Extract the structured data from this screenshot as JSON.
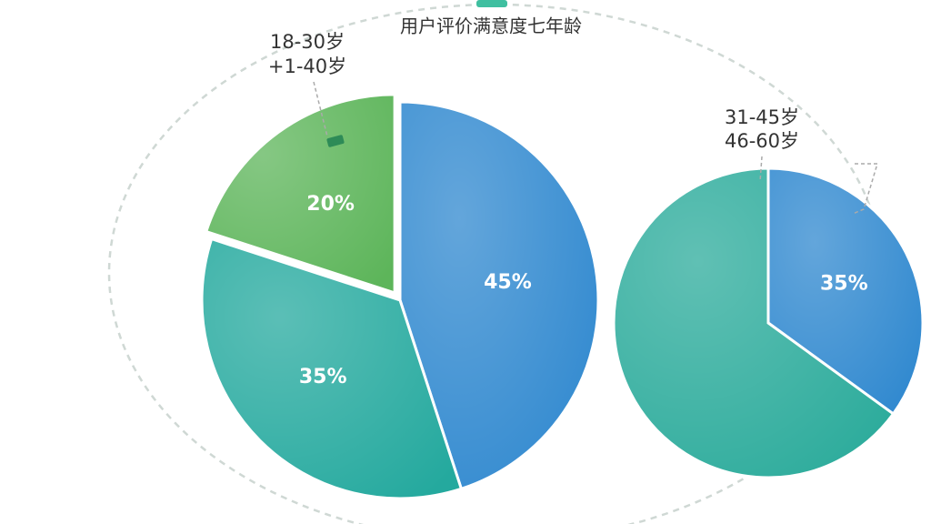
{
  "title": "用户评价满意度七年龄",
  "chart_data": [
    {
      "type": "pie",
      "annotations": [
        "18-30岁",
        "+1-40岁"
      ],
      "values": [
        45,
        35,
        20
      ],
      "value_labels": [
        "45%",
        "35%",
        "20%"
      ],
      "colors": [
        "#2f88cf",
        "#24a99e",
        "#5db55a"
      ]
    },
    {
      "type": "pie",
      "annotations": [
        "31-45岁",
        "46-60岁"
      ],
      "values": [
        35,
        65
      ],
      "value_labels": [
        "35%",
        null
      ],
      "colors": [
        "#2f88cf",
        "#2bab9b"
      ]
    }
  ]
}
